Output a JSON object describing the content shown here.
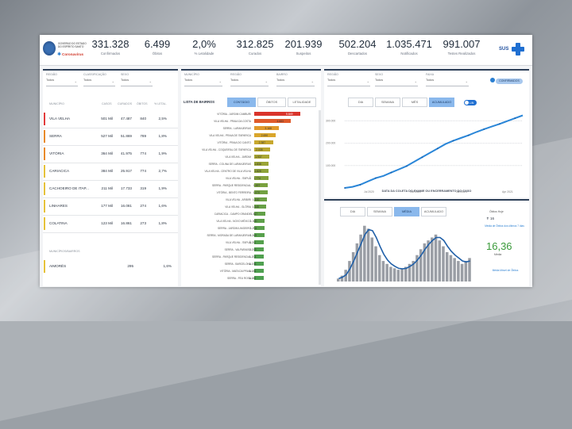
{
  "header": {
    "logo_text": "GOVERNO DO ESTADO DO ESPÍRITO SANTO",
    "logo_sub": "Coronavírus",
    "kpis": [
      {
        "value": "331.328",
        "label": "Confirmados"
      },
      {
        "value": "6.499",
        "label": "Óbitos"
      },
      {
        "value": "2,0%",
        "label": "% Letalidade"
      },
      {
        "value": "312.825",
        "label": "Curados"
      },
      {
        "value": "201.939",
        "label": "Suspeitos"
      },
      {
        "value": "502.204",
        "label": "Descartados"
      },
      {
        "value": "1.035.471",
        "label": "Notificados"
      },
      {
        "value": "991.007",
        "label": "Testes Realizados"
      }
    ],
    "sus_label": "SUS"
  },
  "left_panel": {
    "filters": [
      {
        "label": "REGIÃO",
        "value": "Todos"
      },
      {
        "label": "CLASSIFICAÇÃO",
        "value": "Todos"
      },
      {
        "label": "SEXO",
        "value": "Todos"
      }
    ],
    "columns": [
      "MUNICÍPIO",
      "CASOS",
      "CURADOS",
      "ÓBITOS",
      "% LETAL."
    ],
    "rows": [
      {
        "name": "VILA VELHA",
        "casos": "501 Mil",
        "curados": "47.487",
        "obitos": "840",
        "letal": "2,5%",
        "color": "#e23b3b"
      },
      {
        "name": "SERRA",
        "casos": "527 Mil",
        "curados": "51.869",
        "obitos": "789",
        "letal": "1,8%",
        "color": "#e88a2b"
      },
      {
        "name": "VITÓRIA",
        "casos": "364 Mil",
        "curados": "41.975",
        "obitos": "774",
        "letal": "1,9%",
        "color": "#e88a2b"
      },
      {
        "name": "CARIACICA",
        "casos": "384 Mil",
        "curados": "25.917",
        "obitos": "774",
        "letal": "2,7%",
        "color": "#e6c23a"
      },
      {
        "name": "CACHOEIRO DE ITAP...",
        "casos": "211 Mil",
        "curados": "17.733",
        "obitos": "319",
        "letal": "1,9%",
        "color": "#e6c23a"
      },
      {
        "name": "LINHARES",
        "casos": "177 Mil",
        "curados": "16.081",
        "obitos": "274",
        "letal": "1,6%",
        "color": "#e6c23a"
      },
      {
        "name": "COLATINA",
        "casos": "123 Mil",
        "curados": "16.861",
        "obitos": "273",
        "letal": "1,8%",
        "color": "#e6c23a"
      }
    ],
    "section_label": "MUNICÍPIOS/BAIRROS",
    "extra_row": {
      "name": "AIMORÉS",
      "casos": "295",
      "letal": "1,6%"
    }
  },
  "middle_panel": {
    "filters": [
      {
        "label": "MUNICÍPIO",
        "value": "Todos"
      },
      {
        "label": "REGIÃO",
        "value": "Todos"
      },
      {
        "label": "BAIRRO",
        "value": "Todos"
      }
    ],
    "title": "LISTA DE BAIRROS",
    "tabs": [
      "CONTÁGIO",
      "ÓBITOS",
      "LETALIDADE"
    ],
    "bars": [
      {
        "name": "VITÓRIA - JARDIM CAMBURI",
        "value": "5.849",
        "color": "#d9342b"
      },
      {
        "name": "VILA VELHA - PRAIA DA COSTA",
        "value": "4.683",
        "color": "#e05b2b"
      },
      {
        "name": "SERRA - LARANJEIRAS",
        "value": "3.168",
        "color": "#e0992b"
      },
      {
        "name": "VILA VELHA - PRAIA DE ITAPARICA",
        "value": "2.690",
        "color": "#d9a62c"
      },
      {
        "name": "VITÓRIA - PRAIA DO CANTO",
        "value": "2.387",
        "color": "#c7a82e"
      },
      {
        "name": "VILA VELHA - COQUEIRAL DE ITAPARICA",
        "value": "2.035",
        "color": "#b9a730"
      },
      {
        "name": "VILA VELHA - JARDIM",
        "value": "1.937",
        "color": "#a9a633"
      },
      {
        "name": "SERRA - COLINA DE LARANJEIRAS",
        "value": "1.838",
        "color": "#9aa436"
      },
      {
        "name": "VILA VELHA - CENTRO DE VILA VELHA",
        "value": "1.828",
        "color": "#8ea339"
      },
      {
        "name": "VILA VELHA - ITAPUÃ",
        "value": "1.774",
        "color": "#84a23c"
      },
      {
        "name": "SERRA - PARQUE RESIDENCIAL",
        "value": "1.697",
        "color": "#7aa13f"
      },
      {
        "name": "VITÓRIA - BENTO FERREIRA",
        "value": "1.670",
        "color": "#72a142"
      },
      {
        "name": "VILA VELHA - ARIBIRI",
        "value": "1.600",
        "color": "#6ca044"
      },
      {
        "name": "VILA VELHA - GLÓRIA",
        "value": "1.545",
        "color": "#67a046"
      },
      {
        "name": "CARIACICA - CAMPO GRANDE",
        "value": "1.367",
        "color": "#62a048"
      },
      {
        "name": "VILA VELHA - NOVO MÉXICO",
        "value": "1.300",
        "color": "#5ea04a"
      },
      {
        "name": "SERRA - JARDIM LIMOEIRO",
        "value": "1.294",
        "color": "#5aa04b"
      },
      {
        "name": "SERRA - MORADA DE LARANJEIRAS",
        "value": "1.269",
        "color": "#57a04c"
      },
      {
        "name": "VILA VELHA - ITAPUÃ",
        "value": "1.211",
        "color": "#54a04d"
      },
      {
        "name": "SERRA - VALPARAISO",
        "value": "1.209",
        "color": "#52a04e"
      },
      {
        "name": "SERRA - PARQUE RESIDENCIAL",
        "value": "1.204",
        "color": "#50a04f"
      },
      {
        "name": "SERRA - BARCELONA",
        "value": "1.198",
        "color": "#4fa050"
      },
      {
        "name": "VITÓRIA - MATA DA PRAIA",
        "value": "1.184",
        "color": "#4ea050"
      },
      {
        "name": "SERRA - FEU ROSA",
        "value": "1.180",
        "color": "#4da050"
      }
    ]
  },
  "right_top": {
    "filters": [
      {
        "label": "REGIÃO",
        "value": "Todos"
      },
      {
        "label": "SEXO",
        "value": "Todos"
      },
      {
        "label": "FAIXA",
        "value": "Todos"
      }
    ],
    "button": "CONFIRMADOS",
    "tabs": [
      "DIA",
      "SEMANA",
      "MÊS",
      "ACUMULADO"
    ],
    "toggle": "LIN",
    "caption": "DATA DA COLETA DO EXAME OU ENCERRAMENTO DO CASO",
    "yticks": [
      "300.000",
      "200.000",
      "100.000"
    ],
    "xticks": [
      "Jul 2020",
      "Oct 2020",
      "Jan 2021",
      "Apr 2021"
    ]
  },
  "right_bottom": {
    "tabs": [
      "DIA",
      "SEMANA",
      "MÉDIA",
      "ACUMULADO"
    ],
    "right_label": "Óbitos Hoje",
    "today_value": "16",
    "note": "Média de Óbitos dos últimos 7 dias",
    "avg_value": "16,36",
    "avg_sub": "Média",
    "footer": "Média Móvel de Óbitos"
  },
  "chart_data": [
    {
      "type": "line",
      "series": [
        {
          "values": [
            0,
            5,
            15,
            30,
            45,
            55,
            70,
            85,
            100,
            120,
            140,
            160,
            180,
            200,
            215,
            228,
            240,
            255,
            268,
            280,
            292,
            305,
            318,
            331
          ]
        }
      ],
      "yticks": [
        "300.000",
        "200.000",
        "100.000"
      ],
      "xticks": [
        "Jul 2020",
        "Oct 2020",
        "Jan 2021",
        "Apr 2021"
      ]
    },
    {
      "type": "bar",
      "series": [
        {
          "values": [
            2,
            4,
            8,
            14,
            20,
            26,
            32,
            38,
            36,
            30,
            24,
            18,
            14,
            12,
            10,
            9,
            8,
            9,
            10,
            12,
            14,
            18,
            22,
            26,
            28,
            30,
            32,
            28,
            24,
            20,
            18,
            16,
            14,
            12,
            14,
            16
          ]
        }
      ]
    }
  ]
}
